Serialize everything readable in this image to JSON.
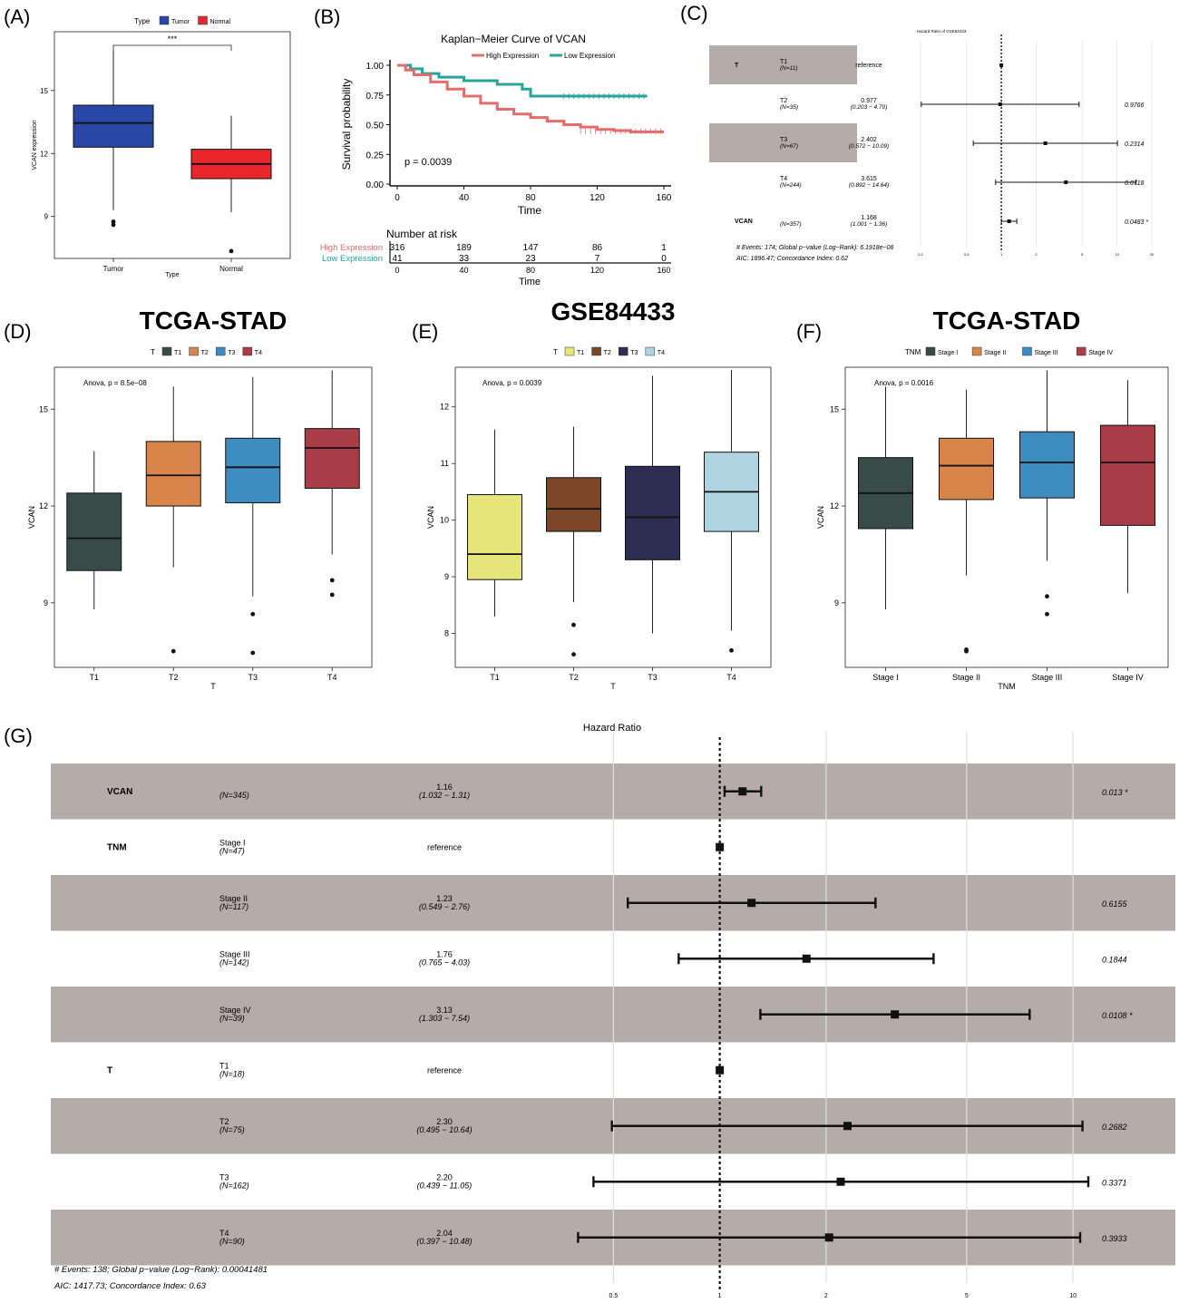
{
  "panels": {
    "A": {
      "label": "(A)",
      "legend_title": "Type",
      "legend_items": [
        {
          "name": "Tumor",
          "color": "#2a47a5"
        },
        {
          "name": "Normal",
          "color": "#e8262b"
        }
      ],
      "xlabel": "Type",
      "ylabel": "VCAN expression",
      "signif": "***",
      "ticks": [
        9,
        12,
        15
      ],
      "ylim": [
        7.0,
        17.8
      ],
      "boxes": [
        {
          "cat": "Tumor",
          "q1": 12.3,
          "median": 13.45,
          "q3": 14.3,
          "wlow": 9.3,
          "whigh": 16.9,
          "outliers": [
            8.75,
            8.6
          ],
          "color": "#2a47a5"
        },
        {
          "cat": "Normal",
          "q1": 10.8,
          "median": 11.5,
          "q3": 12.2,
          "wlow": 9.2,
          "whigh": 13.8,
          "outliers": [
            7.35
          ],
          "color": "#e8262b"
        }
      ]
    },
    "B": {
      "label": "(B)",
      "title": "Kaplan−Meier Curve of VCAN",
      "legend_items": [
        {
          "name": "High Expression",
          "color": "#e36c6c"
        },
        {
          "name": "Low Expression",
          "color": "#2aa39b"
        }
      ],
      "ylabel": "Survival probability",
      "xlabel": "Time",
      "pvalue": "p = 0.0039",
      "yticks": [
        "0.00",
        "0.25",
        "0.50",
        "0.75",
        "1.00"
      ],
      "xticks": [
        "0",
        "40",
        "80",
        "120",
        "160"
      ],
      "risk_title": "Number at risk",
      "risk_rows": [
        {
          "name": "High Expression",
          "color": "#e36c6c",
          "values": [
            "316",
            "189",
            "147",
            "86",
            "1"
          ]
        },
        {
          "name": "Low Expression",
          "color": "#2aa39b",
          "values": [
            "41",
            "33",
            "23",
            "7",
            "0"
          ]
        }
      ],
      "risk_xlabel": "Time",
      "curves": {
        "high": [
          [
            0,
            1
          ],
          [
            5,
            0.96
          ],
          [
            10,
            0.92
          ],
          [
            20,
            0.86
          ],
          [
            30,
            0.8
          ],
          [
            40,
            0.74
          ],
          [
            50,
            0.68
          ],
          [
            60,
            0.63
          ],
          [
            70,
            0.59
          ],
          [
            80,
            0.56
          ],
          [
            90,
            0.53
          ],
          [
            100,
            0.5
          ],
          [
            110,
            0.48
          ],
          [
            120,
            0.46
          ],
          [
            130,
            0.45
          ],
          [
            140,
            0.44
          ],
          [
            150,
            0.44
          ],
          [
            160,
            0.44
          ]
        ],
        "low": [
          [
            0,
            1
          ],
          [
            8,
            0.97
          ],
          [
            15,
            0.93
          ],
          [
            25,
            0.9
          ],
          [
            40,
            0.87
          ],
          [
            60,
            0.84
          ],
          [
            75,
            0.8
          ],
          [
            80,
            0.74
          ],
          [
            100,
            0.74
          ],
          [
            120,
            0.74
          ],
          [
            150,
            0.74
          ]
        ]
      }
    },
    "C": {
      "label": "(C)",
      "title": "Hazard Ratio of GSE84433",
      "rows": [
        {
          "var": "T",
          "level": "T1",
          "n": "(N=11)",
          "est": "reference",
          "ci": "",
          "p": "",
          "hr": 1,
          "lo": 1,
          "hi": 1,
          "shaded": true
        },
        {
          "var": "",
          "level": "T2",
          "n": "(N=35)",
          "est": "0.977",
          "ci": "(0.203 − 4.70)",
          "p": "0.9766",
          "hr": 0.977,
          "lo": 0.203,
          "hi": 4.7,
          "shaded": false
        },
        {
          "var": "",
          "level": "T3",
          "n": "(N=67)",
          "est": "2.402",
          "ci": "(0.572 − 10.09)",
          "p": "0.2314",
          "hr": 2.402,
          "lo": 0.572,
          "hi": 10.09,
          "shaded": true
        },
        {
          "var": "",
          "level": "T4",
          "n": "(N=244)",
          "est": "3.615",
          "ci": "(0.892 − 14.64)",
          "p": "0.0718",
          "hr": 3.615,
          "lo": 0.892,
          "hi": 14.64,
          "shaded": false
        },
        {
          "var": "VCAN",
          "level": "",
          "n": "(N=357)",
          "est": "1.168",
          "ci": "(1.001 − 1.36)",
          "p": "0.0483 *",
          "hr": 1.168,
          "lo": 1.001,
          "hi": 1.36,
          "shaded": false
        }
      ],
      "footer1": "# Events: 174; Global p−value (Log−Rank): 6.1918e−06",
      "footer2": "AIC: 1896.47; Concordance Index: 0.62",
      "xticks": [
        "0.2",
        "0.5",
        "1",
        "2",
        "5",
        "10",
        "20"
      ]
    },
    "D": {
      "label": "(D)",
      "title": "TCGA-STAD",
      "legend_title": "T",
      "anova": "Anova, p = 8.5e−08",
      "ylabel": "VCAN",
      "xlabel": "T",
      "ticks": [
        9,
        12,
        15
      ],
      "ylim": [
        7.0,
        16.3
      ],
      "boxes": [
        {
          "cat": "T1",
          "q1": 10.0,
          "median": 11.0,
          "q3": 12.4,
          "wlow": 8.8,
          "whigh": 13.7,
          "outliers": [],
          "color": "#394b48"
        },
        {
          "cat": "T2",
          "q1": 12.0,
          "median": 12.95,
          "q3": 14.0,
          "wlow": 10.1,
          "whigh": 15.7,
          "outliers": [
            7.5
          ],
          "color": "#d9844a"
        },
        {
          "cat": "T3",
          "q1": 12.1,
          "median": 13.2,
          "q3": 14.1,
          "wlow": 9.2,
          "whigh": 16.0,
          "outliers": [
            8.65,
            7.45
          ],
          "color": "#3d8dc1"
        },
        {
          "cat": "T4",
          "q1": 12.55,
          "median": 13.8,
          "q3": 14.4,
          "wlow": 10.5,
          "whigh": 16.2,
          "outliers": [
            9.7,
            9.25
          ],
          "color": "#a83d47"
        }
      ]
    },
    "E": {
      "label": "(E)",
      "title": "GSE84433",
      "legend_title": "T",
      "anova": "Anova, p = 0.0039",
      "ylabel": "VCAN",
      "xlabel": "T",
      "ticks": [
        8,
        9,
        10,
        11,
        12
      ],
      "ylim": [
        7.4,
        12.7
      ],
      "boxes": [
        {
          "cat": "T1",
          "q1": 8.95,
          "median": 9.4,
          "q3": 10.45,
          "wlow": 8.3,
          "whigh": 11.6,
          "outliers": [],
          "color": "#e6e57a"
        },
        {
          "cat": "T2",
          "q1": 9.8,
          "median": 10.2,
          "q3": 10.75,
          "wlow": 8.55,
          "whigh": 11.65,
          "outliers": [
            8.15,
            7.63
          ],
          "color": "#7b4526"
        },
        {
          "cat": "T3",
          "q1": 9.3,
          "median": 10.05,
          "q3": 10.95,
          "wlow": 8.0,
          "whigh": 12.55,
          "outliers": [],
          "color": "#2e2e52"
        },
        {
          "cat": "T4",
          "q1": 9.8,
          "median": 10.5,
          "q3": 11.2,
          "wlow": 8.05,
          "whigh": 12.65,
          "outliers": [
            7.7
          ],
          "color": "#aed3e1"
        }
      ]
    },
    "F": {
      "label": "(F)",
      "title": "TCGA-STAD",
      "legend_title": "TNM",
      "anova": "Anova, p = 0.0016",
      "ylabel": "VCAN",
      "xlabel": "TNM",
      "ticks": [
        9,
        12,
        15
      ],
      "ylim": [
        7.0,
        16.3
      ],
      "boxes": [
        {
          "cat": "Stage I",
          "q1": 11.3,
          "median": 12.4,
          "q3": 13.5,
          "wlow": 8.8,
          "whigh": 15.7,
          "outliers": [],
          "color": "#394b48"
        },
        {
          "cat": "Stage II",
          "q1": 12.2,
          "median": 13.25,
          "q3": 14.1,
          "wlow": 9.85,
          "whigh": 15.6,
          "outliers": [
            7.55,
            7.5
          ],
          "color": "#d9844a"
        },
        {
          "cat": "Stage III",
          "q1": 12.25,
          "median": 13.35,
          "q3": 14.3,
          "wlow": 10.3,
          "whigh": 16.2,
          "outliers": [
            9.2,
            8.65
          ],
          "color": "#3d8dc1"
        },
        {
          "cat": "Stage IV",
          "q1": 11.4,
          "median": 13.35,
          "q3": 14.5,
          "wlow": 9.3,
          "whigh": 15.9,
          "outliers": [],
          "color": "#a83d47"
        }
      ]
    },
    "G": {
      "label": "(G)",
      "title": "Hazard Ratio",
      "rows": [
        {
          "var": "VCAN",
          "level": "",
          "n": "(N=345)",
          "est": "1.16",
          "ci": "(1.032 − 1.31)",
          "p": "0.013 *",
          "hr": 1.16,
          "lo": 1.032,
          "hi": 1.31,
          "shaded": true
        },
        {
          "var": "TNM",
          "level": "Stage I",
          "n": "(N=47)",
          "est": "reference",
          "ci": "",
          "p": "",
          "hr": 1,
          "lo": 1,
          "hi": 1,
          "shaded": false
        },
        {
          "var": "",
          "level": "Stage II",
          "n": "(N=117)",
          "est": "1.23",
          "ci": "(0.549 − 2.76)",
          "p": "0.6155",
          "hr": 1.23,
          "lo": 0.549,
          "hi": 2.76,
          "shaded": true
        },
        {
          "var": "",
          "level": "Stage III",
          "n": "(N=142)",
          "est": "1.76",
          "ci": "(0.765 − 4.03)",
          "p": "0.1844",
          "hr": 1.76,
          "lo": 0.765,
          "hi": 4.03,
          "shaded": false
        },
        {
          "var": "",
          "level": "Stage IV",
          "n": "(N=39)",
          "est": "3.13",
          "ci": "(1.303 − 7.54)",
          "p": "0.0108 *",
          "hr": 3.13,
          "lo": 1.303,
          "hi": 7.54,
          "shaded": true
        },
        {
          "var": "T",
          "level": "T1",
          "n": "(N=18)",
          "est": "reference",
          "ci": "",
          "p": "",
          "hr": 1,
          "lo": 1,
          "hi": 1,
          "shaded": false
        },
        {
          "var": "",
          "level": "T2",
          "n": "(N=75)",
          "est": "2.30",
          "ci": "(0.495 − 10.64)",
          "p": "0.2682",
          "hr": 2.3,
          "lo": 0.495,
          "hi": 10.64,
          "shaded": true
        },
        {
          "var": "",
          "level": "T3",
          "n": "(N=162)",
          "est": "2.20",
          "ci": "(0.439 − 11.05)",
          "p": "0.3371",
          "hr": 2.2,
          "lo": 0.439,
          "hi": 11.05,
          "shaded": false
        },
        {
          "var": "",
          "level": "T4",
          "n": "(N=90)",
          "est": "2.04",
          "ci": "(0.397 − 10.48)",
          "p": "0.3933",
          "hr": 2.04,
          "lo": 0.397,
          "hi": 10.48,
          "shaded": true
        }
      ],
      "footer1": "# Events: 138; Global p−value (Log−Rank): 0.00041481",
      "footer2": "AIC: 1417.73; Concordance Index: 0.63",
      "xticks": [
        "0.5",
        "1",
        "2",
        "5",
        "10"
      ]
    }
  },
  "chart_data": [
    {
      "type": "box",
      "panel": "A",
      "xlabel": "Type",
      "ylabel": "VCAN expression",
      "categories": [
        "Tumor",
        "Normal"
      ]
    },
    {
      "type": "line",
      "panel": "B",
      "title": "Kaplan−Meier Curve of VCAN",
      "xlabel": "Time",
      "ylabel": "Survival probability",
      "ylim": [
        0,
        1
      ],
      "xlim": [
        0,
        160
      ]
    },
    {
      "type": "forest",
      "panel": "C",
      "title": "Hazard Ratio of GSE84433"
    },
    {
      "type": "box",
      "panel": "D",
      "title": "TCGA-STAD",
      "xlabel": "T",
      "ylabel": "VCAN",
      "categories": [
        "T1",
        "T2",
        "T3",
        "T4"
      ]
    },
    {
      "type": "box",
      "panel": "E",
      "title": "GSE84433",
      "xlabel": "T",
      "ylabel": "VCAN",
      "categories": [
        "T1",
        "T2",
        "T3",
        "T4"
      ]
    },
    {
      "type": "box",
      "panel": "F",
      "title": "TCGA-STAD",
      "xlabel": "TNM",
      "ylabel": "VCAN",
      "categories": [
        "Stage I",
        "Stage II",
        "Stage III",
        "Stage IV"
      ]
    },
    {
      "type": "forest",
      "panel": "G",
      "title": "Hazard Ratio"
    }
  ]
}
